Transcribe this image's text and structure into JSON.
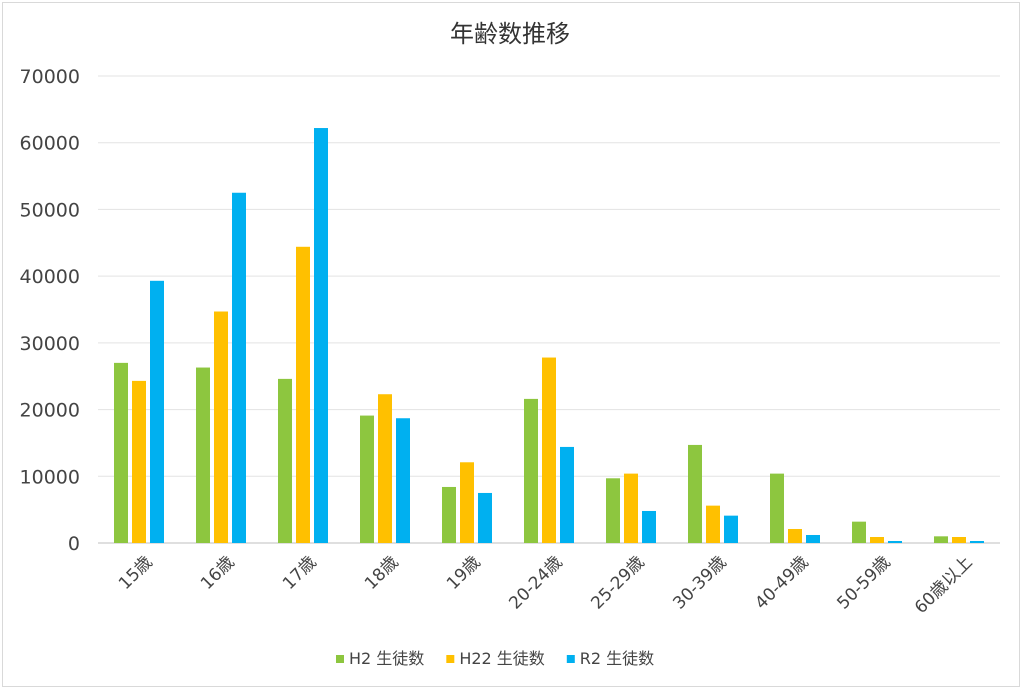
{
  "chart_data": {
    "type": "bar",
    "title": "年齢数推移",
    "xlabel": "",
    "ylabel": "",
    "ylim": [
      0,
      70000
    ],
    "yticks": [
      "0",
      "10000",
      "20000",
      "30000",
      "40000",
      "50000",
      "60000",
      "70000"
    ],
    "grid": true,
    "legend_position": "bottom",
    "categories": [
      "15歳",
      "16歳",
      "17歳",
      "18歳",
      "19歳",
      "20-24歳",
      "25-29歳",
      "30-39歳",
      "40-49歳",
      "50-59歳",
      "60歳以上"
    ],
    "series": [
      {
        "name": "H2 生徒数",
        "color": "#8dc63f",
        "values": [
          27000,
          26300,
          24600,
          19100,
          8400,
          21600,
          9700,
          14700,
          10400,
          3200,
          1000
        ]
      },
      {
        "name": "H22 生徒数",
        "color": "#ffc000",
        "values": [
          24300,
          34700,
          44400,
          22300,
          12100,
          27800,
          10400,
          5600,
          2100,
          900,
          900
        ]
      },
      {
        "name": "R2 生徒数",
        "color": "#00b0f0",
        "values": [
          39300,
          52500,
          62200,
          18700,
          7500,
          14400,
          4800,
          4100,
          1200,
          300,
          300
        ]
      }
    ]
  }
}
